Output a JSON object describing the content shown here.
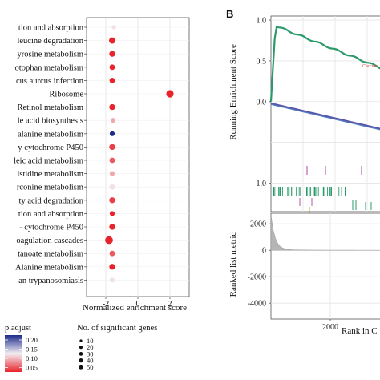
{
  "figure": {
    "panel_b_letter": "B"
  },
  "chart_data": [
    {
      "type": "scatter",
      "title": "",
      "xlabel": "Normalized enrichment score",
      "ylabel": "",
      "xlim": [
        -3.2,
        3.2
      ],
      "xticks": [
        -2,
        0,
        2
      ],
      "grid": true,
      "categories": [
        "tion and absorption",
        "leucine degradation",
        "yrosine metabolism",
        "otophan metabolism",
        "cus aurcus infection",
        "Ribosome",
        "Retinol metabolism",
        "le acid biosynthesis",
        "alanine metabolism",
        "y cytochrome P450",
        "leic acid metabolism",
        "istidine metabolism",
        "rconine metabolism",
        "ty acid degradation",
        "tion and absorption",
        "- cytochrome P450",
        "oagulation cascades",
        "tanoate metabolism",
        "Alanine metabolism",
        "an trypanosomiasis"
      ],
      "points": [
        {
          "nes": -1.5,
          "p_adjust": 0.12,
          "genes": 10
        },
        {
          "nes": -1.6,
          "p_adjust": 0.05,
          "genes": 30
        },
        {
          "nes": -1.6,
          "p_adjust": 0.05,
          "genes": 25
        },
        {
          "nes": -1.6,
          "p_adjust": 0.05,
          "genes": 20
        },
        {
          "nes": -1.6,
          "p_adjust": 0.05,
          "genes": 20
        },
        {
          "nes": 2.0,
          "p_adjust": 0.05,
          "genes": 45
        },
        {
          "nes": -1.6,
          "p_adjust": 0.05,
          "genes": 25
        },
        {
          "nes": -1.55,
          "p_adjust": 0.1,
          "genes": 15
        },
        {
          "nes": -1.6,
          "p_adjust": 0.2,
          "genes": 15
        },
        {
          "nes": -1.6,
          "p_adjust": 0.06,
          "genes": 25
        },
        {
          "nes": -1.6,
          "p_adjust": 0.07,
          "genes": 20
        },
        {
          "nes": -1.6,
          "p_adjust": 0.1,
          "genes": 15
        },
        {
          "nes": -1.6,
          "p_adjust": 0.12,
          "genes": 20
        },
        {
          "nes": -1.6,
          "p_adjust": 0.06,
          "genes": 25
        },
        {
          "nes": -1.6,
          "p_adjust": 0.05,
          "genes": 15
        },
        {
          "nes": -1.6,
          "p_adjust": 0.05,
          "genes": 25
        },
        {
          "nes": -1.8,
          "p_adjust": 0.05,
          "genes": 50
        },
        {
          "nes": -1.6,
          "p_adjust": 0.07,
          "genes": 20
        },
        {
          "nes": -1.6,
          "p_adjust": 0.05,
          "genes": 25
        },
        {
          "nes": -1.6,
          "p_adjust": 0.12,
          "genes": 15
        }
      ],
      "color_legend": {
        "title": "p.adjust",
        "ticks": [
          "0.20",
          "0.15",
          "0.10",
          "0.05"
        ],
        "low_color": "#e8232b",
        "high_color": "#1d2c8c"
      },
      "size_legend": {
        "title": "No. of significant genes",
        "values": [
          10,
          20,
          30,
          40,
          50
        ]
      }
    },
    {
      "type": "line",
      "title": "",
      "ylabel": "Running Enrichment Score",
      "ylim": [
        -1.35,
        1.05
      ],
      "yticks": [
        "1.0",
        "0.5",
        "0.0",
        "-1.0"
      ],
      "grid": true,
      "series": [
        {
          "name": "Carcino",
          "color": "#2a9a6a",
          "shape": "up"
        },
        {
          "name": "",
          "color": "#5a54a8",
          "shape": "down"
        }
      ]
    },
    {
      "type": "area",
      "xlabel": "Rank in C",
      "ylabel": "Ranked list metric",
      "ylim": [
        -5200,
        2800
      ],
      "yticks": [
        "2000",
        "0",
        "-2000",
        "-4000"
      ],
      "xticks": [
        "2000"
      ],
      "color": "#a9a9a9"
    }
  ]
}
